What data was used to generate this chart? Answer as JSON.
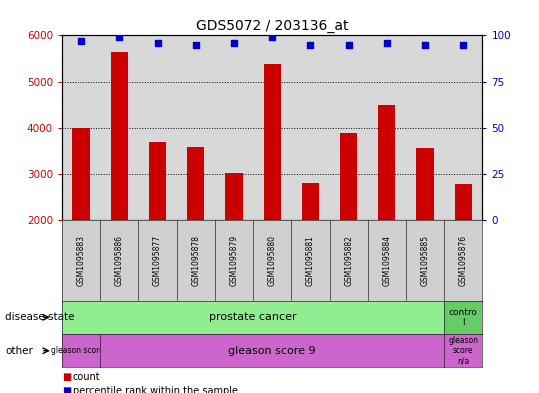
{
  "title": "GDS5072 / 203136_at",
  "samples": [
    "GSM1095883",
    "GSM1095886",
    "GSM1095877",
    "GSM1095878",
    "GSM1095879",
    "GSM1095880",
    "GSM1095881",
    "GSM1095882",
    "GSM1095884",
    "GSM1095885",
    "GSM1095876"
  ],
  "counts": [
    4000,
    5650,
    3700,
    3580,
    3020,
    5380,
    2800,
    3880,
    4500,
    3560,
    2780
  ],
  "percentile_ranks": [
    97,
    99,
    96,
    95,
    96,
    99,
    95,
    95,
    96,
    95,
    95
  ],
  "bar_color": "#cc0000",
  "dot_color": "#0000cc",
  "ylim_left": [
    2000,
    6000
  ],
  "ylim_right": [
    0,
    100
  ],
  "yticks_left": [
    2000,
    3000,
    4000,
    5000,
    6000
  ],
  "yticks_right": [
    0,
    25,
    50,
    75,
    100
  ],
  "grid_dotted_at": [
    3000,
    4000,
    5000
  ],
  "plot_bg": "#d8d8d8",
  "prostate_color": "#90ee90",
  "control_color": "#66cc66",
  "gleason_color": "#cc66cc",
  "gleason8_color": "#cc66cc"
}
